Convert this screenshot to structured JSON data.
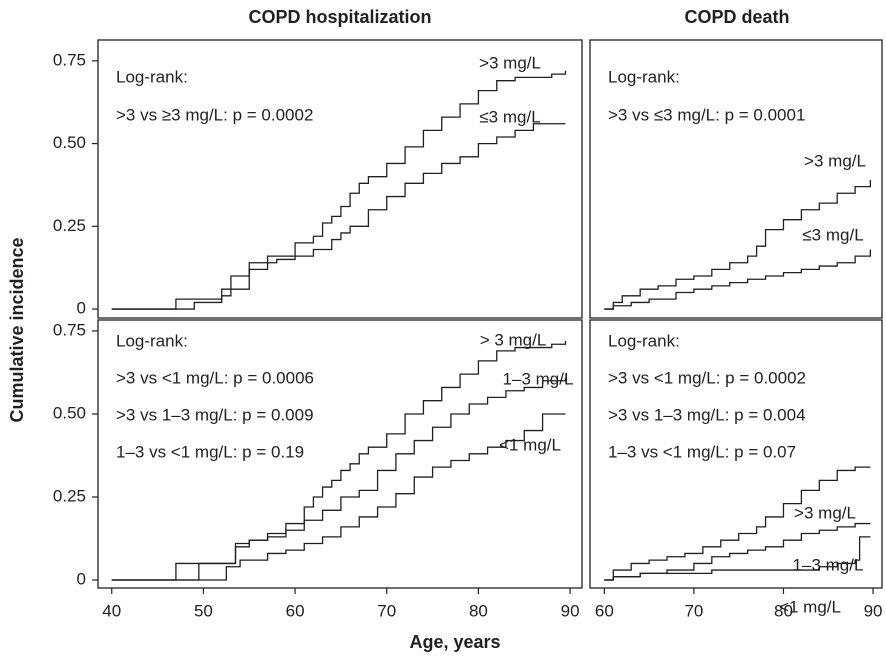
{
  "xlabel": "Age, years",
  "ylabel": "Cumulative incidence",
  "chart_data": [
    {
      "type": "line",
      "title": "COPD hospitalization",
      "annotations": [
        "Log-rank:",
        ">3 vs ≥3 mg/L: p = 0.0002"
      ],
      "xlim": [
        38.5,
        91.3
      ],
      "ylim": [
        -0.027,
        0.813
      ],
      "yticks": [
        0,
        0.25,
        {
          "value": 0.5,
          "label": "0.50"
        },
        0.75
      ],
      "series": [
        {
          "name": ">3 mg/L",
          "color": "#231f20",
          "x": [
            40,
            47,
            50,
            52,
            53,
            55,
            57,
            60,
            62,
            63,
            64,
            65,
            66,
            67,
            68,
            70,
            72,
            74,
            76,
            78,
            80,
            82,
            84,
            86,
            88,
            89.5
          ],
          "values": [
            0,
            0.03,
            0.03,
            0.06,
            0.1,
            0.14,
            0.16,
            0.2,
            0.22,
            0.26,
            0.28,
            0.31,
            0.35,
            0.38,
            0.4,
            0.44,
            0.49,
            0.54,
            0.58,
            0.62,
            0.66,
            0.69,
            0.7,
            0.7,
            0.71,
            0.72
          ]
        },
        {
          "name": "≤3 mg/L",
          "color": "#231f20",
          "x": [
            40,
            49,
            52,
            53,
            55,
            57,
            58,
            60,
            62,
            64,
            65,
            66,
            68,
            70,
            72,
            74,
            76,
            78,
            80,
            82,
            84,
            86,
            89.5
          ],
          "values": [
            0,
            0.02,
            0.04,
            0.06,
            0.12,
            0.14,
            0.15,
            0.16,
            0.18,
            0.21,
            0.23,
            0.25,
            0.3,
            0.34,
            0.38,
            0.41,
            0.44,
            0.46,
            0.5,
            0.52,
            0.54,
            0.56,
            0.56
          ]
        }
      ]
    },
    {
      "type": "line",
      "title": "COPD death",
      "annotations": [
        "Log-rank:",
        ">3 vs ≤3 mg/L: p = 0.0001"
      ],
      "xlim": [
        58.4,
        91.0
      ],
      "ylim": [
        -0.027,
        0.813
      ],
      "series": [
        {
          "name": ">3 mg/L",
          "color": "#231f20",
          "x": [
            60,
            61,
            62,
            64,
            66,
            68,
            70,
            72,
            74,
            76,
            77,
            78,
            80,
            82,
            84,
            86,
            88,
            89.7
          ],
          "values": [
            0,
            0.02,
            0.04,
            0.06,
            0.07,
            0.09,
            0.1,
            0.12,
            0.14,
            0.16,
            0.19,
            0.24,
            0.27,
            0.3,
            0.32,
            0.35,
            0.37,
            0.39
          ]
        },
        {
          "name": "≤3 mg/L",
          "color": "#231f20",
          "x": [
            60,
            61,
            63,
            65,
            68,
            70,
            72,
            74,
            76,
            78,
            80,
            82,
            84,
            86,
            88,
            89.7
          ],
          "values": [
            0,
            0.01,
            0.02,
            0.03,
            0.05,
            0.06,
            0.07,
            0.08,
            0.09,
            0.1,
            0.11,
            0.12,
            0.13,
            0.14,
            0.16,
            0.18
          ]
        }
      ]
    },
    {
      "type": "line",
      "annotations": [
        "Log-rank:",
        ">3 vs <1 mg/L: p = 0.0006",
        ">3 vs 1–3 mg/L: p = 0.009",
        "1–3 vs <1 mg/L: p = 0.19"
      ],
      "xlim": [
        38.5,
        91.3
      ],
      "ylim": [
        -0.024,
        0.783
      ],
      "xticks": [
        40,
        50,
        60,
        70,
        80,
        90
      ],
      "yticks": [
        0,
        0.25,
        {
          "value": 0.5,
          "label": "0.50"
        },
        0.75
      ],
      "series": [
        {
          "name": "> 3 mg/L",
          "color": "#231f20",
          "x": [
            40,
            47,
            53.5,
            55,
            57,
            59,
            61,
            62,
            63,
            64,
            65,
            66,
            67,
            68,
            70,
            72,
            74,
            76,
            78,
            80,
            82,
            84,
            86,
            88,
            89.5
          ],
          "values": [
            0,
            0.05,
            0.1,
            0.12,
            0.14,
            0.17,
            0.22,
            0.25,
            0.28,
            0.3,
            0.33,
            0.35,
            0.38,
            0.4,
            0.44,
            0.5,
            0.54,
            0.58,
            0.62,
            0.66,
            0.69,
            0.7,
            0.7,
            0.71,
            0.72
          ]
        },
        {
          "name": "1–3 mg/L",
          "color": "#231f20",
          "x": [
            40,
            49.5,
            53.5,
            55,
            57,
            59,
            61,
            63,
            65,
            67,
            69,
            71,
            73,
            75,
            77,
            79,
            81,
            83,
            85,
            87,
            89.5
          ],
          "values": [
            0,
            0.05,
            0.11,
            0.12,
            0.13,
            0.15,
            0.18,
            0.21,
            0.25,
            0.27,
            0.33,
            0.38,
            0.42,
            0.46,
            0.5,
            0.53,
            0.55,
            0.57,
            0.58,
            0.6,
            0.61
          ]
        },
        {
          "name": "<1 mg/L",
          "color": "#231f20",
          "x": [
            40,
            52.5,
            54,
            57,
            59,
            61,
            63,
            65,
            67,
            69,
            71,
            73,
            75,
            77,
            79,
            81,
            83,
            85,
            87,
            89.5
          ],
          "values": [
            0,
            0.04,
            0.06,
            0.08,
            0.09,
            0.11,
            0.13,
            0.16,
            0.19,
            0.22,
            0.26,
            0.31,
            0.34,
            0.36,
            0.38,
            0.4,
            0.42,
            0.45,
            0.5,
            0.5
          ]
        }
      ]
    },
    {
      "type": "line",
      "annotations": [
        "Log-rank:",
        ">3 vs <1 mg/L: p = 0.0002",
        ">3 vs 1–3 mg/L: p = 0.004",
        "1–3 vs <1 mg/L: p = 0.07"
      ],
      "xlim": [
        58.4,
        91.0
      ],
      "ylim": [
        -0.024,
        0.783
      ],
      "xticks": [
        60,
        70,
        80,
        90
      ],
      "series": [
        {
          "name": ">3 mg/L",
          "color": "#231f20",
          "x": [
            60,
            61,
            63,
            65,
            67,
            69,
            71,
            73,
            75,
            77,
            78,
            80,
            82,
            84,
            86,
            88,
            89.7
          ],
          "values": [
            0,
            0.03,
            0.05,
            0.06,
            0.07,
            0.08,
            0.1,
            0.12,
            0.14,
            0.16,
            0.19,
            0.23,
            0.27,
            0.3,
            0.33,
            0.34,
            0.34
          ]
        },
        {
          "name": "1–3 mg/L",
          "color": "#231f20",
          "x": [
            60,
            61,
            64,
            67,
            70,
            72,
            74,
            76,
            78,
            80,
            82,
            84,
            86,
            88,
            89.7
          ],
          "values": [
            0,
            0.01,
            0.02,
            0.03,
            0.05,
            0.07,
            0.08,
            0.09,
            0.1,
            0.12,
            0.14,
            0.15,
            0.16,
            0.17,
            0.17
          ]
        },
        {
          "name": "<1 mg/L",
          "color": "#231f20",
          "x": [
            60,
            61,
            64,
            68,
            72,
            76,
            80,
            84,
            86,
            88,
            88.5,
            89.7
          ],
          "values": [
            0,
            0.01,
            0.02,
            0.02,
            0.03,
            0.03,
            0.03,
            0.04,
            0.05,
            0.06,
            0.13,
            0.13
          ]
        }
      ]
    }
  ]
}
